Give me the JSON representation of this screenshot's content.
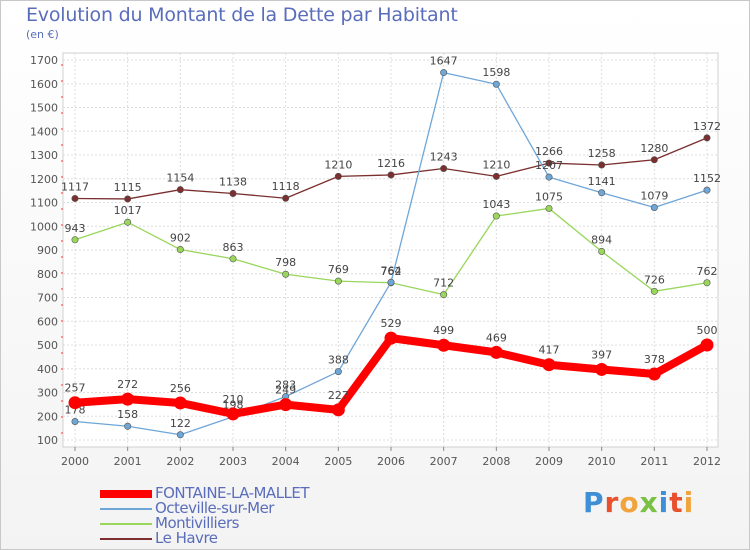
{
  "title": "Evolution du Montant de la Dette par Habitant",
  "subtitle": "(en €)",
  "logo": "Proxiti",
  "chart_data": {
    "type": "line",
    "title": "Evolution du Montant de la Dette par Habitant",
    "ylabel": "(en €)",
    "x": [
      "2000",
      "2001",
      "2002",
      "2003",
      "2004",
      "2005",
      "2006",
      "2007",
      "2008",
      "2009",
      "2010",
      "2011",
      "2012"
    ],
    "ylim": [
      100,
      1700
    ],
    "yticks": [
      100,
      200,
      300,
      400,
      500,
      600,
      700,
      800,
      900,
      1000,
      1100,
      1200,
      1300,
      1400,
      1500,
      1600,
      1700
    ],
    "grid": true,
    "legend_position": "bottom-left",
    "series": [
      {
        "name": "FONTAINE-LA-MALLET",
        "color": "#ff0000",
        "values": [
          257,
          272,
          256,
          210,
          249,
          227,
          529,
          499,
          469,
          417,
          397,
          378,
          500
        ]
      },
      {
        "name": "Octeville-sur-Mer",
        "color": "#6fa6d8",
        "values": [
          178,
          158,
          122,
          198,
          283,
          388,
          764,
          1647,
          1598,
          1207,
          1141,
          1079,
          1152
        ]
      },
      {
        "name": "Montivilliers",
        "color": "#99d65b",
        "values": [
          943,
          1017,
          902,
          863,
          798,
          769,
          762,
          712,
          1043,
          1075,
          894,
          726,
          762
        ]
      },
      {
        "name": "Le Havre",
        "color": "#7b2f2f",
        "values": [
          1117,
          1115,
          1154,
          1138,
          1118,
          1210,
          1216,
          1243,
          1210,
          1266,
          1258,
          1280,
          1372
        ]
      }
    ]
  }
}
